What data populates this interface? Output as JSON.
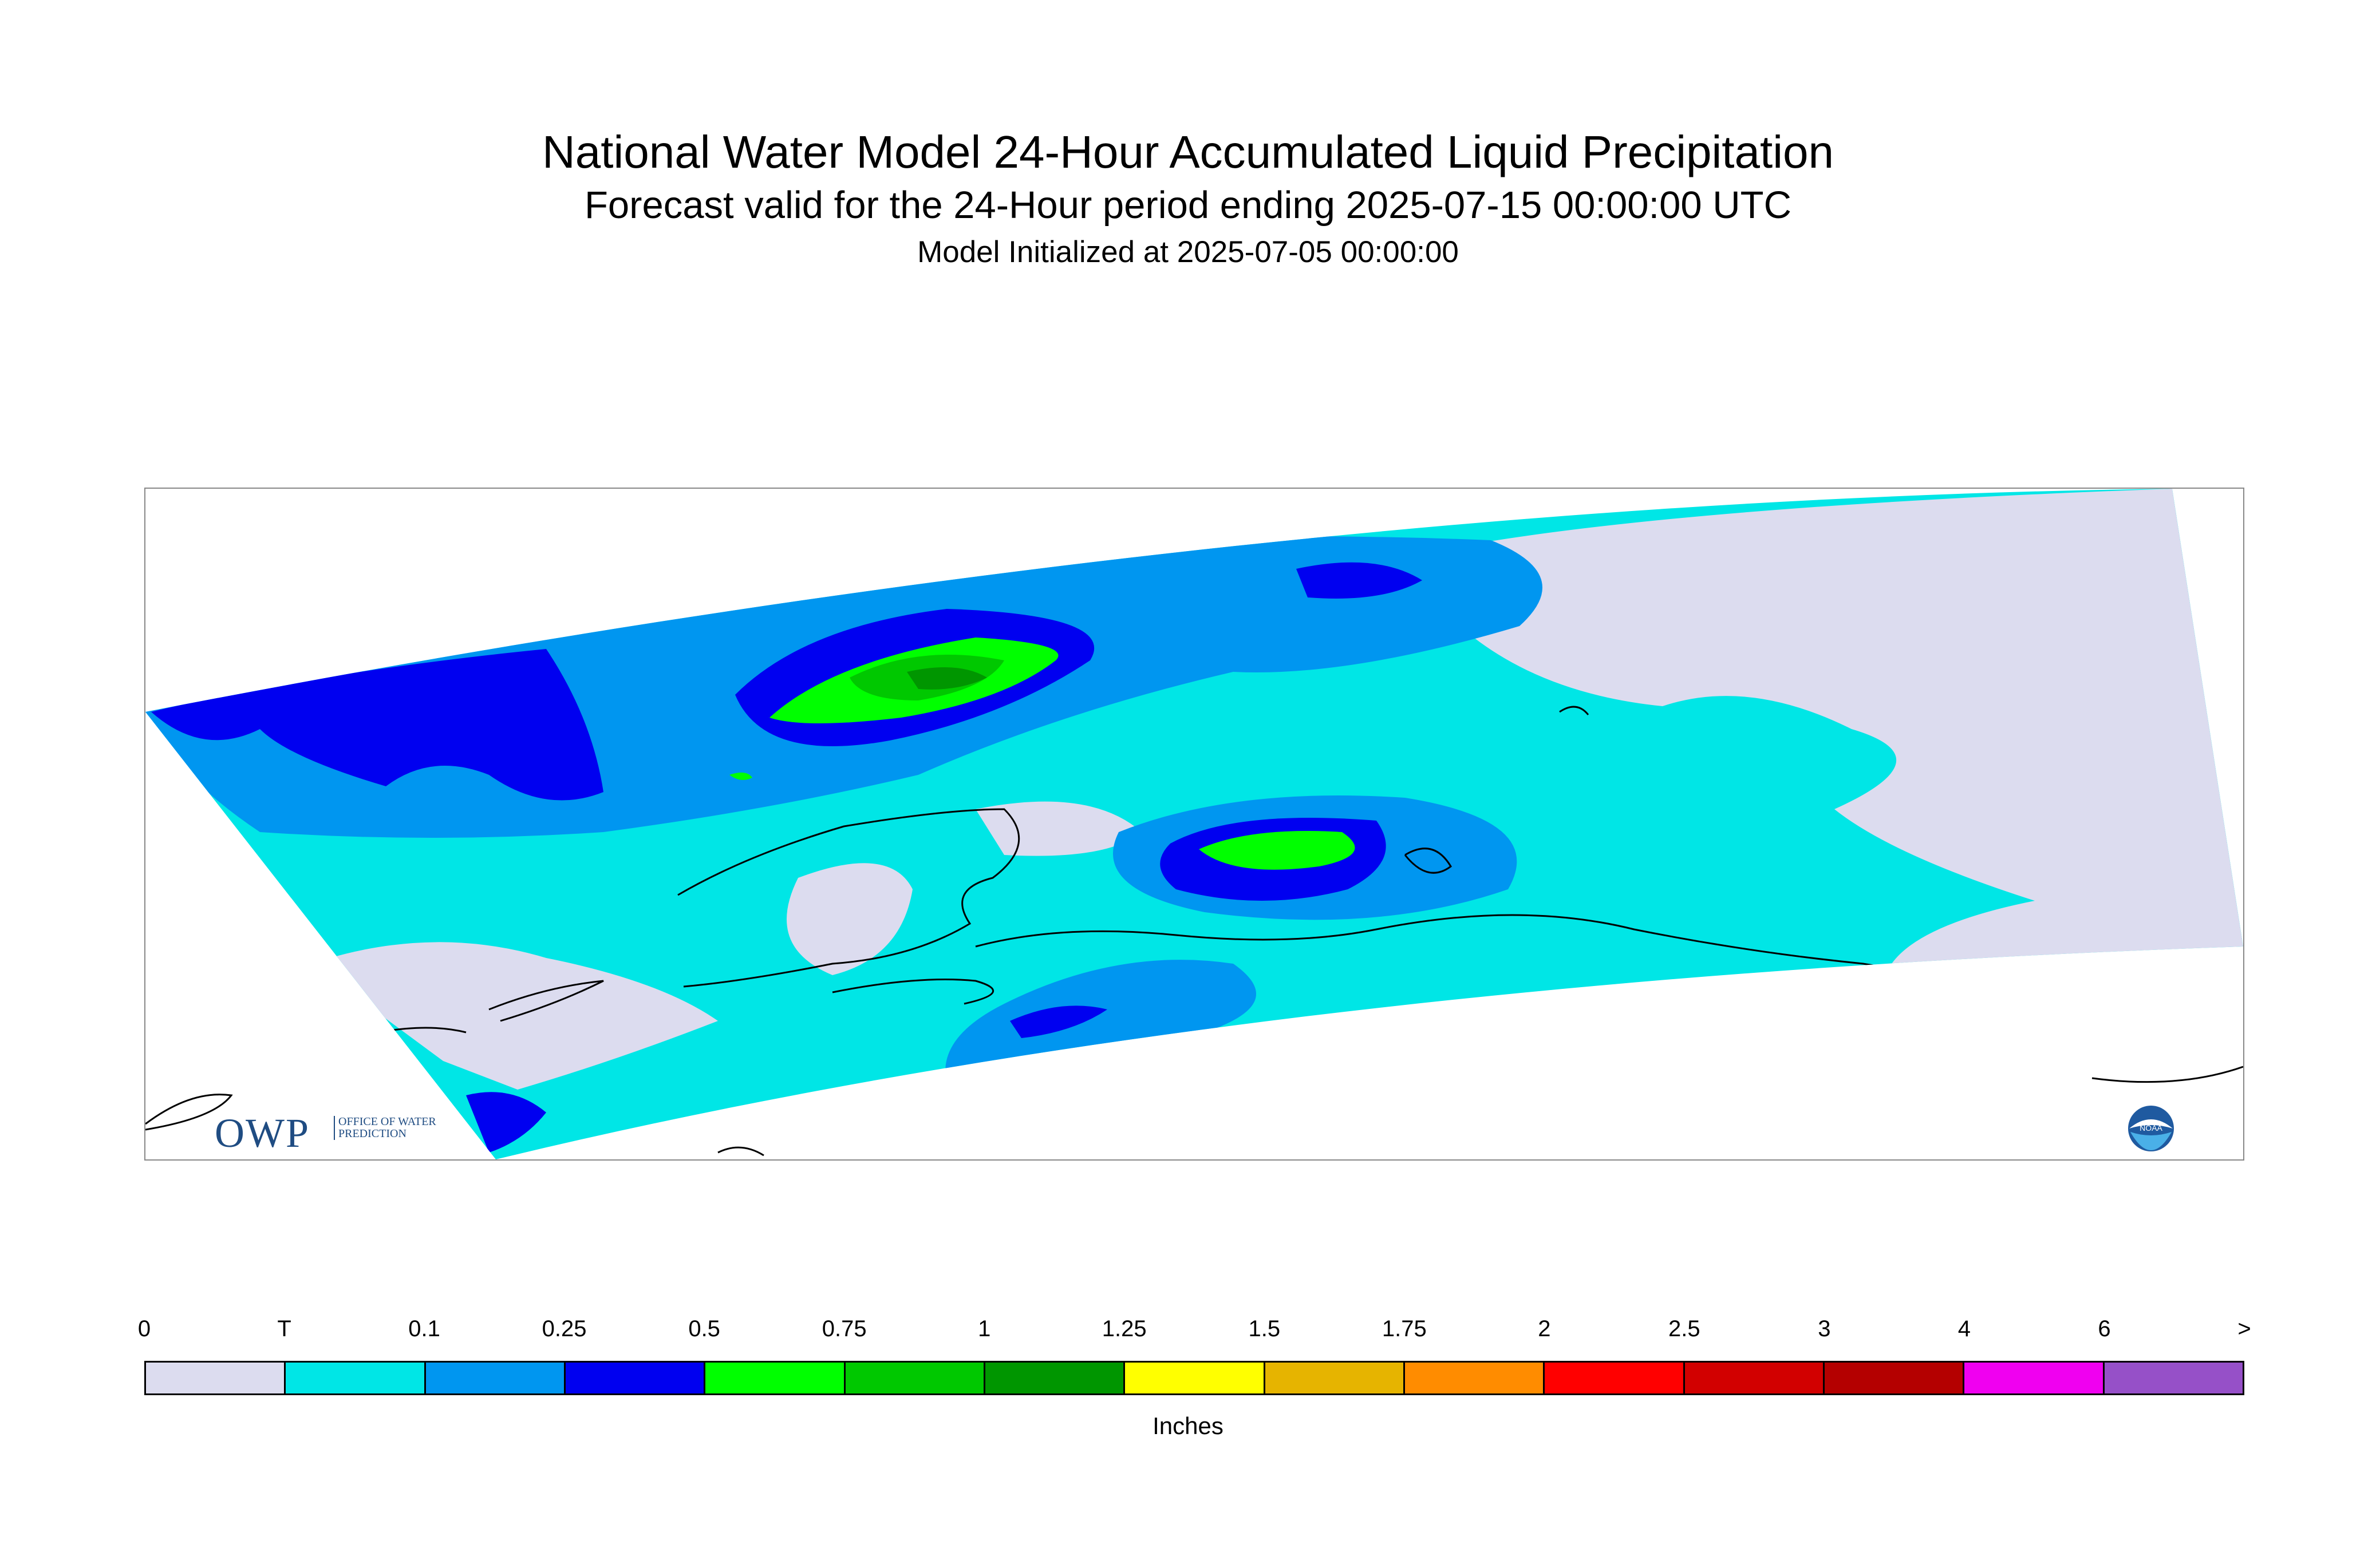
{
  "title": "National Water Model 24-Hour Accumulated Liquid Precipitation",
  "subtitle": "Forecast valid for the 24-Hour period ending 2025-07-15 00:00:00 UTC",
  "init_line": "Model Initialized at 2025-07-05 00:00:00",
  "logos": {
    "owp_letters": "OWP",
    "owp_sub": "OFFICE OF WATER PREDICTION",
    "noaa": "NOAA"
  },
  "legend": {
    "labels": [
      "0",
      "T",
      "0.1",
      "0.25",
      "0.5",
      "0.75",
      "1",
      "1.25",
      "1.5",
      "1.75",
      "2",
      "2.5",
      "3",
      "4",
      "6",
      ">"
    ],
    "colors": [
      "#dcdcef",
      "#00e6e6",
      "#0096f0",
      "#0000f0",
      "#00ff00",
      "#00c800",
      "#009600",
      "#ffff00",
      "#e6b400",
      "#ff8c00",
      "#ff0000",
      "#d20000",
      "#b40000",
      "#f000f0",
      "#9650c8"
    ],
    "units": "Inches"
  }
}
